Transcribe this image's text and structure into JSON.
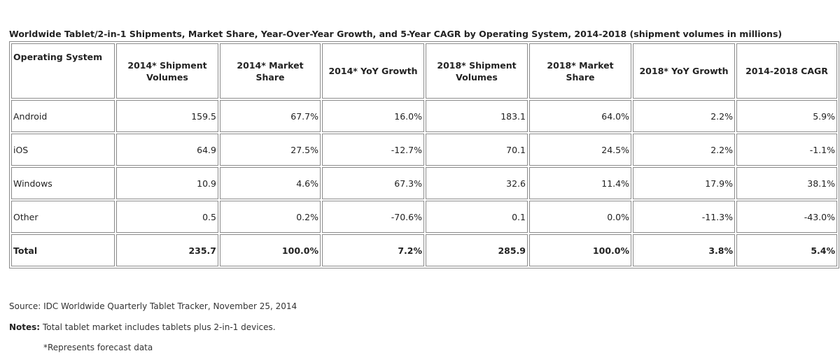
{
  "title": "Worldwide Tablet/2-in-1 Shipments, Market Share, Year-Over-Year Growth, and 5-Year CAGR by Operating System, 2014-2018 (shipment volumes in millions)",
  "headers": [
    "Operating System",
    "2014* Shipment Volumes",
    "2014* Market Share",
    "2014* YoY Growth",
    "2018* Shipment Volumes",
    "2018* Market Share",
    "2018* YoY Growth",
    "2014-2018 CAGR"
  ],
  "rows": [
    [
      "Android",
      "159.5",
      "67.7%",
      "16.0%",
      "183.1",
      "64.0%",
      "2.2%",
      "5.9%"
    ],
    [
      "iOS",
      "64.9",
      "27.5%",
      "-12.7%",
      "70.1",
      "24.5%",
      "2.2%",
      "-1.1%"
    ],
    [
      "Windows",
      "10.9",
      "4.6%",
      "67.3%",
      "32.6",
      "11.4%",
      "17.9%",
      "38.1%"
    ],
    [
      "Other",
      "0.5",
      "0.2%",
      "-70.6%",
      "0.1",
      "0.0%",
      "-11.3%",
      "-43.0%"
    ],
    [
      "Total",
      "235.7",
      "100.0%",
      "7.2%",
      "285.9",
      "100.0%",
      "3.8%",
      "5.4%"
    ]
  ],
  "source": "Source: IDC Worldwide Quarterly Tablet Tracker, November 25, 2014",
  "notes_label": "Notes:",
  "notes_text": "Total tablet market includes tablets plus 2-in-1 devices.",
  "footnote": "*Represents forecast data"
}
